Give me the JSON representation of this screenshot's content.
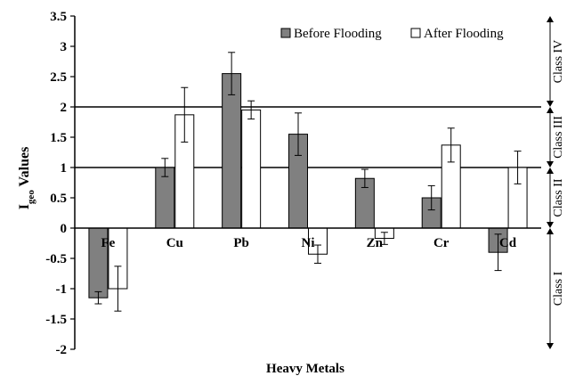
{
  "chart_data": {
    "type": "bar",
    "categories": [
      "Fe",
      "Cu",
      "Pb",
      "Ni",
      "Zn",
      "Cr",
      "Cd"
    ],
    "series": [
      {
        "name": "Before Flooding",
        "values": [
          -1.15,
          1.0,
          2.55,
          1.55,
          0.82,
          0.5,
          -0.4
        ],
        "errors": [
          0.1,
          0.15,
          0.35,
          0.35,
          0.15,
          0.2,
          0.3
        ],
        "color": "#808080"
      },
      {
        "name": "After Flooding",
        "values": [
          -1.0,
          1.87,
          1.95,
          -0.43,
          -0.17,
          1.37,
          1.0
        ],
        "errors": [
          0.37,
          0.45,
          0.15,
          0.15,
          0.1,
          0.28,
          0.27
        ],
        "color": "#ffffff"
      }
    ],
    "xlabel": "Heavy Metals",
    "ylabel": {
      "main": "I",
      "sub": "geo",
      "rest": " Values"
    },
    "ylim": [
      -2,
      3.5
    ],
    "yticks": [
      "3.5",
      "3",
      "2.5",
      "2",
      "1.5",
      "1",
      "0.5",
      "0",
      "-0.5",
      "-1",
      "-1.5",
      "-2"
    ],
    "reference_lines": [
      1,
      2
    ],
    "legend_position": "top-right",
    "classes": [
      {
        "label": "Class IV",
        "range": [
          2,
          3.5
        ]
      },
      {
        "label": "Class III",
        "range": [
          1,
          2
        ]
      },
      {
        "label": "Class II",
        "range": [
          0,
          1
        ]
      },
      {
        "label": "Class I",
        "range": [
          -2,
          0
        ]
      }
    ]
  }
}
